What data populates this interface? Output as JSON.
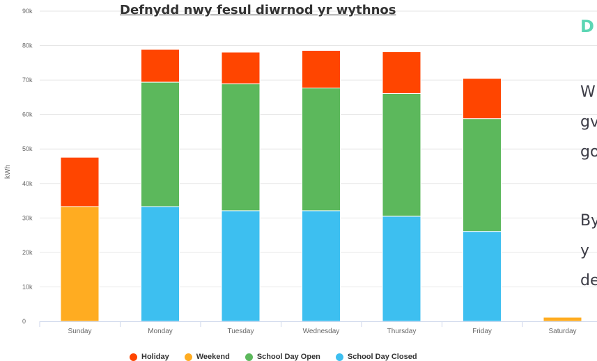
{
  "chart_data": {
    "type": "bar",
    "stacked": true,
    "title": "Defnydd nwy fesul diwrnod yr wythnos",
    "ylabel": "kWh",
    "xlabel": "",
    "ylim": [
      0,
      90000
    ],
    "yticks": [
      0,
      10000,
      20000,
      30000,
      40000,
      50000,
      60000,
      70000,
      80000,
      90000
    ],
    "ytick_labels": [
      "0",
      "10k",
      "20k",
      "30k",
      "40k",
      "50k",
      "60k",
      "70k",
      "80k",
      "90k"
    ],
    "categories": [
      "Sunday",
      "Monday",
      "Tuesday",
      "Wednesday",
      "Thursday",
      "Friday",
      "Saturday"
    ],
    "series": [
      {
        "name": "School Day Closed",
        "color": "#3dbff0",
        "values": [
          0,
          33300,
          32100,
          32100,
          30500,
          26100,
          0
        ]
      },
      {
        "name": "School Day Open",
        "color": "#5cb85c",
        "values": [
          0,
          36100,
          36800,
          35600,
          35600,
          32700,
          0
        ]
      },
      {
        "name": "Weekend",
        "color": "#ffac21",
        "values": [
          33300,
          0,
          0,
          0,
          0,
          0,
          1200
        ]
      },
      {
        "name": "Holiday",
        "color": "#ff4500",
        "values": [
          14300,
          9500,
          9200,
          10900,
          12100,
          11700,
          0
        ]
      }
    ],
    "legend_order": [
      "Holiday",
      "Weekend",
      "School Day Open",
      "School Day Closed"
    ],
    "legend_position": "bottom",
    "grid": true
  },
  "side_text": {
    "heading": "D",
    "lines": [
      "W",
      "gv",
      "go",
      "By",
      "y",
      "de"
    ]
  }
}
